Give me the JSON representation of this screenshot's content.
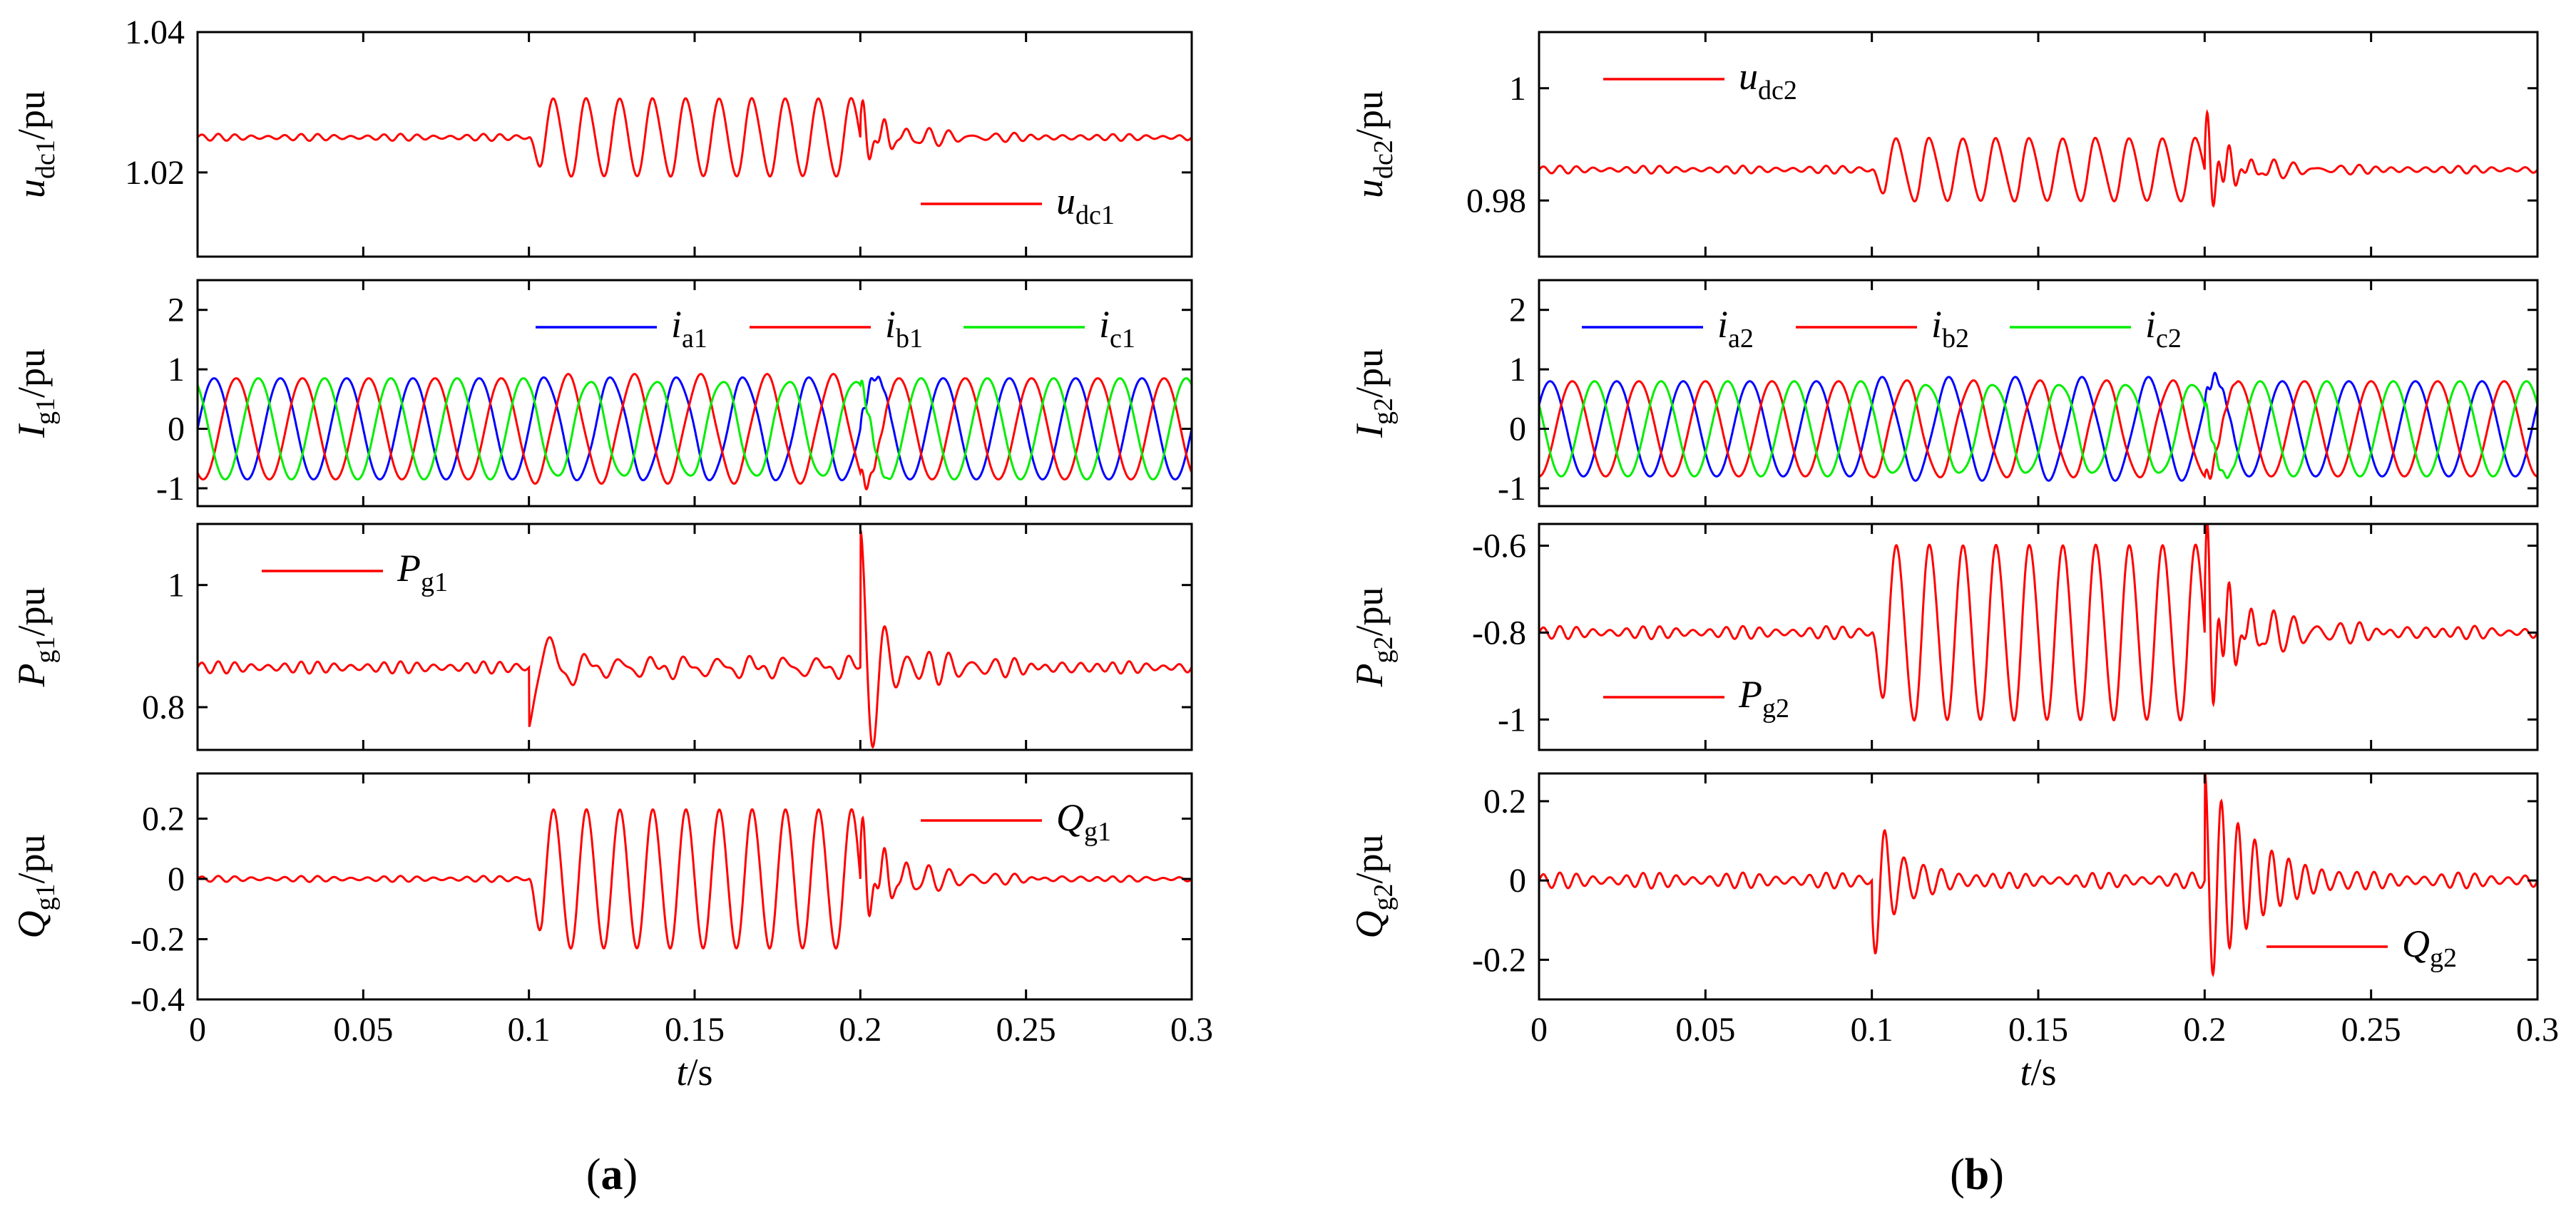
{
  "captions": {
    "a": "a",
    "b": "b"
  },
  "xaxis": {
    "var": "t",
    "unit": "/s",
    "range": [
      0,
      0.3
    ],
    "ticks": [
      0,
      0.05,
      0.1,
      0.15,
      0.2,
      0.25,
      0.3
    ],
    "tick_labels": [
      "0",
      "0.05",
      "0.1",
      "0.15",
      "0.2",
      "0.25",
      "0.3"
    ]
  },
  "colors": {
    "red": "#ff0000",
    "blue": "#0000ff",
    "green": "#00ee00"
  },
  "chart_data": [
    {
      "id": "a1",
      "type": "line",
      "ylabel": {
        "var": "u",
        "sub": "dc1",
        "unit": "/pu"
      },
      "ylim": [
        1.008,
        1.04
      ],
      "yticks": [
        1.02,
        1.04
      ],
      "ytick_labels": [
        "1.02",
        "1.04"
      ],
      "legend_position": "bottom-right",
      "series": [
        {
          "kind": "dc",
          "color": "red",
          "var": "u",
          "sub": "dc1",
          "base": 1.025,
          "noise_amp": 0.0005,
          "noise_freq": 200,
          "osc_amp": 0.0055,
          "osc_freq": 100,
          "osc_start": 0.1,
          "osc_end": 0.2,
          "post_amp": 0.0025,
          "post_tau": 0.02,
          "dist2": 0.003
        }
      ]
    },
    {
      "id": "a2",
      "type": "line",
      "ylabel": {
        "var": "I",
        "sub": "g1",
        "unit": "/pu"
      },
      "ylim": [
        -1.3,
        2.5
      ],
      "yticks": [
        -1,
        0,
        1,
        2
      ],
      "ytick_labels": [
        "-1",
        "0",
        "1",
        "2"
      ],
      "legend_position": "top-right",
      "series": [
        {
          "kind": "ac",
          "color": "blue",
          "var": "i",
          "sub": "a1",
          "amp": 0.85,
          "freq": 50,
          "phase_deg": 0
        },
        {
          "kind": "ac",
          "color": "red",
          "var": "i",
          "sub": "b1",
          "amp": 0.85,
          "freq": 50,
          "phase_deg": -120
        },
        {
          "kind": "ac",
          "color": "green",
          "var": "i",
          "sub": "c1",
          "amp": 0.85,
          "freq": 50,
          "phase_deg": 120
        }
      ]
    },
    {
      "id": "a3",
      "type": "line",
      "ylabel": {
        "var": "P",
        "sub": "g1",
        "unit": "/pu"
      },
      "ylim": [
        0.73,
        1.1
      ],
      "yticks": [
        0.8,
        1
      ],
      "ytick_labels": [
        "0.8",
        "1"
      ],
      "legend_position": "top-left",
      "series": [
        {
          "kind": "pow",
          "color": "red",
          "var": "P",
          "sub": "g1",
          "base": 0.865,
          "noise_amp": 0.01,
          "noise_freq": 200,
          "osc_amp": 0.012,
          "osc_freq": 100,
          "osc_start": 0.1,
          "osc_end": 0.2,
          "kick1": -0.1,
          "kick2": 0.18,
          "post_amp": 0.05,
          "post_tau": 0.025
        }
      ]
    },
    {
      "id": "a4",
      "type": "line",
      "ylabel": {
        "var": "Q",
        "sub": "g1",
        "unit": "/pu"
      },
      "ylim": [
        -0.4,
        0.35
      ],
      "yticks": [
        -0.4,
        -0.2,
        0,
        0.2
      ],
      "ytick_labels": [
        "-0.4",
        "-0.2",
        "0",
        "0.2"
      ],
      "legend_position": "top-right",
      "series": [
        {
          "kind": "dc",
          "color": "red",
          "var": "Q",
          "sub": "g1",
          "base": 0.0,
          "noise_amp": 0.01,
          "noise_freq": 200,
          "osc_amp": 0.23,
          "osc_freq": 100,
          "osc_start": 0.1,
          "osc_end": 0.2,
          "post_amp": 0.1,
          "post_tau": 0.02,
          "dist2": 0.12
        }
      ]
    },
    {
      "id": "b1",
      "type": "line",
      "ylabel": {
        "var": "u",
        "sub": "dc2",
        "unit": "/pu"
      },
      "ylim": [
        0.97,
        1.01
      ],
      "yticks": [
        0.98,
        1
      ],
      "ytick_labels": [
        "0.98",
        "1"
      ],
      "legend_position": "top-left",
      "series": [
        {
          "kind": "dc",
          "color": "red",
          "var": "u",
          "sub": "dc2",
          "base": 0.9855,
          "noise_amp": 0.0007,
          "noise_freq": 200,
          "osc_amp": 0.0055,
          "osc_freq": 100,
          "osc_start": 0.1,
          "osc_end": 0.2,
          "post_amp": 0.003,
          "post_tau": 0.02,
          "dist2": 0.008
        }
      ]
    },
    {
      "id": "b2",
      "type": "line",
      "ylabel": {
        "var": "I",
        "sub": "g2",
        "unit": "/pu"
      },
      "ylim": [
        -1.3,
        2.5
      ],
      "yticks": [
        -1,
        0,
        1,
        2
      ],
      "ytick_labels": [
        "-1",
        "0",
        "1",
        "2"
      ],
      "legend_position": "top-left",
      "series": [
        {
          "kind": "ac",
          "color": "blue",
          "var": "i",
          "sub": "a2",
          "amp": 0.8,
          "freq": 50,
          "phase_deg": 30
        },
        {
          "kind": "ac",
          "color": "red",
          "var": "i",
          "sub": "b2",
          "amp": 0.8,
          "freq": 50,
          "phase_deg": -90
        },
        {
          "kind": "ac",
          "color": "green",
          "var": "i",
          "sub": "c2",
          "amp": 0.8,
          "freq": 50,
          "phase_deg": 150
        }
      ]
    },
    {
      "id": "b3",
      "type": "line",
      "ylabel": {
        "var": "P",
        "sub": "g2",
        "unit": "/pu"
      },
      "ylim": [
        -1.07,
        -0.55
      ],
      "yticks": [
        -1,
        -0.8,
        -0.6
      ],
      "ytick_labels": [
        "-1",
        "-0.8",
        "-0.6"
      ],
      "legend_position": "bottom-left",
      "series": [
        {
          "kind": "dc",
          "color": "red",
          "var": "P",
          "sub": "g2",
          "base": -0.8,
          "noise_amp": 0.015,
          "noise_freq": 200,
          "osc_amp": 0.2,
          "osc_freq": 100,
          "osc_start": 0.1,
          "osc_end": 0.2,
          "post_amp": 0.08,
          "post_tau": 0.025,
          "dist2": 0.2
        }
      ]
    },
    {
      "id": "b4",
      "type": "line",
      "ylabel": {
        "var": "Q",
        "sub": "g2",
        "unit": "/pu"
      },
      "ylim": [
        -0.3,
        0.27
      ],
      "yticks": [
        -0.2,
        0,
        0.2
      ],
      "ytick_labels": [
        "-0.2",
        "0",
        "0.2"
      ],
      "legend_position": "bottom-right",
      "series": [
        {
          "kind": "spike",
          "color": "red",
          "var": "Q",
          "sub": "g2",
          "base": 0.0,
          "noise_amp": 0.02,
          "noise_freq": 200,
          "spike1": 0.22,
          "spike2": 0.28,
          "tau1": 0.008,
          "tau2": 0.015
        }
      ]
    }
  ]
}
